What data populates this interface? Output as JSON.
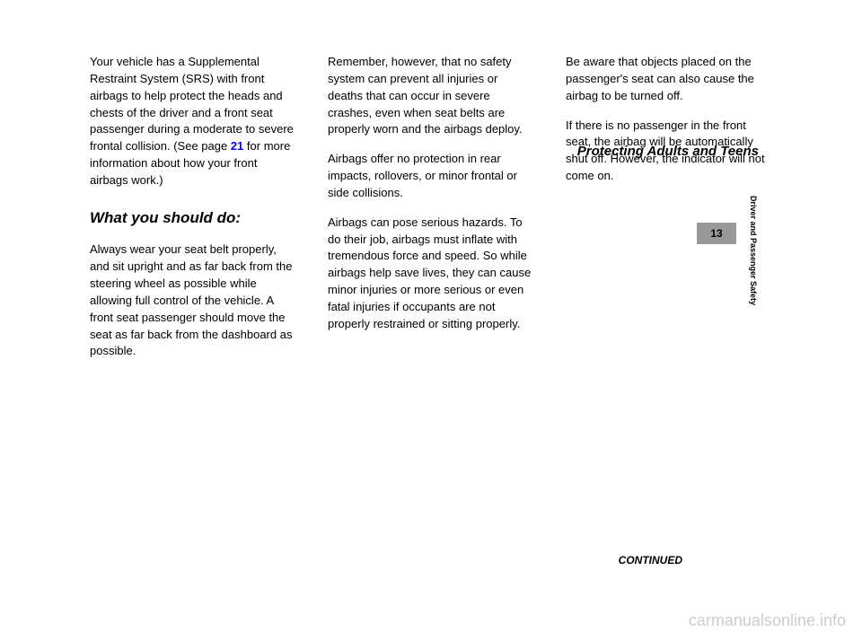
{
  "column1": {
    "para1": "Your vehicle has a Supplemental Restraint System (SRS) with front airbags to help protect the heads and chests of the driver and a front seat passenger during a moderate to severe frontal collision. (See page",
    "pageLink": "21",
    "para1b": " for more information about how your front airbags work.)",
    "sectionTitle": "What you should do:",
    "para2": "Always wear your seat belt properly, and sit upright and as far back from the steering wheel as possible while allowing full control of the vehicle. A front seat passenger should move the seat as far back from the dashboard as possible."
  },
  "column2": {
    "sectionTitle": "Remember, however, that no safety system can prevent all injuries or deaths that can occur in severe crashes, even when seat belts are properly worn and the airbags deploy.",
    "para1": "Airbags offer no protection in rear impacts, rollovers, or minor frontal or side collisions.",
    "para2": "Airbags can pose serious hazards. To do their job, airbags must inflate with tremendous force and speed. So while airbags help save lives, they can cause minor injuries or more serious or even fatal injuries if occupants are not properly restrained or sitting properly."
  },
  "column3": {
    "para1": "Be aware that objects placed on the passenger's seat can also cause the airbag to be turned off.",
    "para2": "If there is no passenger in the front seat, the airbag will be automatically shut off. However, the indicator will not come on."
  },
  "headerTitle": "Protecting Adults and Teens",
  "pageNumber": "13",
  "continuedLabel": "CONTINUED",
  "sidebarLabel": "Driver and Passenger Safety",
  "watermark": "carmanualsonline.info"
}
